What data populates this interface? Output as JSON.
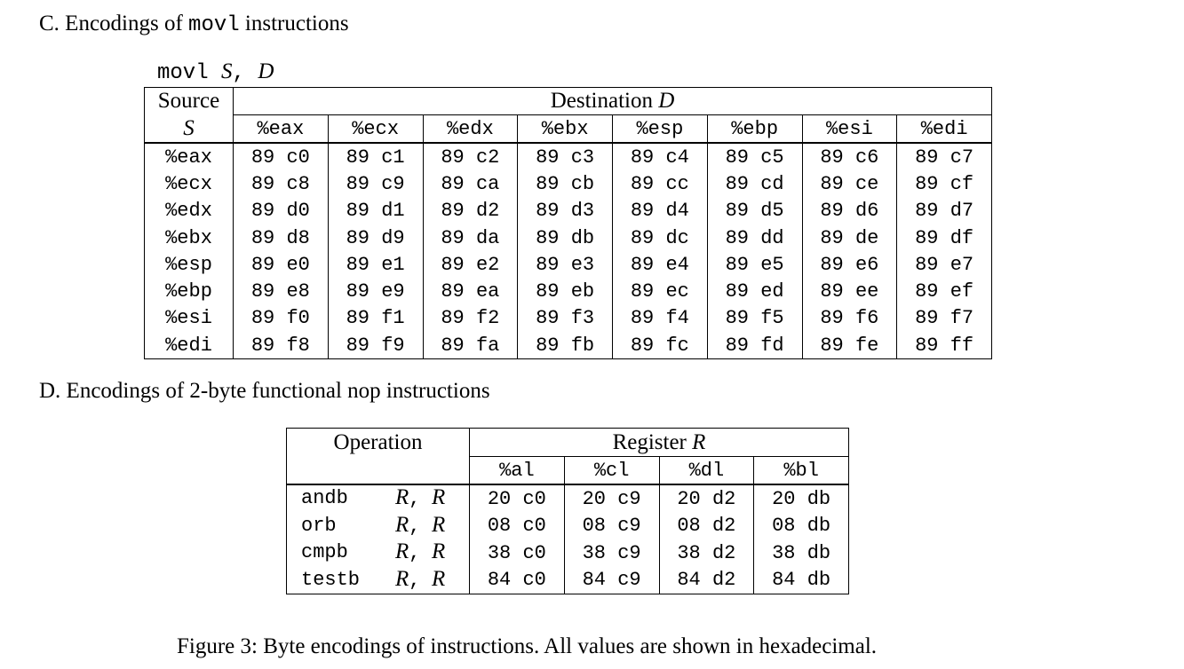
{
  "section_c": {
    "prefix": "C. Encodings of ",
    "mnemonic": "movl",
    "suffix": " instructions"
  },
  "syntax_line": {
    "mnemonic": "movl",
    "src_var": "S",
    "comma": ",",
    "dst_var": "D"
  },
  "movl_table": {
    "source_header_line1": "Source",
    "source_header_var": "S",
    "destination_header": "Destination",
    "destination_var": "D",
    "destinations": [
      "%eax",
      "%ecx",
      "%edx",
      "%ebx",
      "%esp",
      "%ebp",
      "%esi",
      "%edi"
    ],
    "rows": [
      {
        "src": "%eax",
        "cells": [
          "89 c0",
          "89 c1",
          "89 c2",
          "89 c3",
          "89 c4",
          "89 c5",
          "89 c6",
          "89 c7"
        ]
      },
      {
        "src": "%ecx",
        "cells": [
          "89 c8",
          "89 c9",
          "89 ca",
          "89 cb",
          "89 cc",
          "89 cd",
          "89 ce",
          "89 cf"
        ]
      },
      {
        "src": "%edx",
        "cells": [
          "89 d0",
          "89 d1",
          "89 d2",
          "89 d3",
          "89 d4",
          "89 d5",
          "89 d6",
          "89 d7"
        ]
      },
      {
        "src": "%ebx",
        "cells": [
          "89 d8",
          "89 d9",
          "89 da",
          "89 db",
          "89 dc",
          "89 dd",
          "89 de",
          "89 df"
        ]
      },
      {
        "src": "%esp",
        "cells": [
          "89 e0",
          "89 e1",
          "89 e2",
          "89 e3",
          "89 e4",
          "89 e5",
          "89 e6",
          "89 e7"
        ]
      },
      {
        "src": "%ebp",
        "cells": [
          "89 e8",
          "89 e9",
          "89 ea",
          "89 eb",
          "89 ec",
          "89 ed",
          "89 ee",
          "89 ef"
        ]
      },
      {
        "src": "%esi",
        "cells": [
          "89 f0",
          "89 f1",
          "89 f2",
          "89 f3",
          "89 f4",
          "89 f5",
          "89 f6",
          "89 f7"
        ]
      },
      {
        "src": "%edi",
        "cells": [
          "89 f8",
          "89 f9",
          "89 fa",
          "89 fb",
          "89 fc",
          "89 fd",
          "89 fe",
          "89 ff"
        ]
      }
    ]
  },
  "section_d": {
    "heading": "D. Encodings of 2-byte functional nop instructions"
  },
  "nop_table": {
    "operation_header": "Operation",
    "register_header": "Register",
    "register_var": "R",
    "registers": [
      "%al",
      "%cl",
      "%dl",
      "%bl"
    ],
    "rows": [
      {
        "op": "andb",
        "arg1": "R",
        "comma": ",",
        "arg2": "R",
        "cells": [
          "20 c0",
          "20 c9",
          "20 d2",
          "20 db"
        ]
      },
      {
        "op": "orb",
        "arg1": "R",
        "comma": ",",
        "arg2": "R",
        "cells": [
          "08 c0",
          "08 c9",
          "08 d2",
          "08 db"
        ]
      },
      {
        "op": "cmpb",
        "arg1": "R",
        "comma": ",",
        "arg2": "R",
        "cells": [
          "38 c0",
          "38 c9",
          "38 d2",
          "38 db"
        ]
      },
      {
        "op": "testb",
        "arg1": "R",
        "comma": ",",
        "arg2": "R",
        "cells": [
          "84 c0",
          "84 c9",
          "84 d2",
          "84 db"
        ]
      }
    ]
  },
  "caption": "Figure 3: Byte encodings of instructions. All values are shown in hexadecimal."
}
